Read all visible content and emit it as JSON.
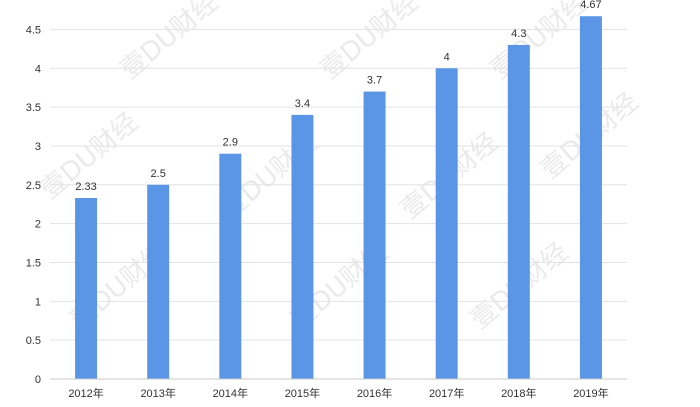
{
  "watermark": "壹DU财经",
  "chart_data": {
    "type": "bar",
    "title": "",
    "xlabel": "",
    "ylabel": "",
    "categories": [
      "2012年",
      "2013年",
      "2014年",
      "2015年",
      "2016年",
      "2017年",
      "2018年",
      "2019年"
    ],
    "values": [
      2.33,
      2.5,
      2.9,
      3.4,
      3.7,
      4,
      4.3,
      4.67
    ],
    "value_labels": [
      "2.33",
      "2.5",
      "2.9",
      "3.4",
      "3.7",
      "4",
      "4.3",
      "4.67"
    ],
    "ylim": [
      0,
      4.75
    ],
    "yticks": [
      "0",
      "0.5",
      "1",
      "1.5",
      "2",
      "2.5",
      "3",
      "3.5",
      "4",
      "4.5"
    ],
    "grid": true,
    "legend": "none",
    "bar_color": "#5b96e6",
    "grid_color": "#e3e3e3",
    "axis_color": "#c8c8c8"
  }
}
